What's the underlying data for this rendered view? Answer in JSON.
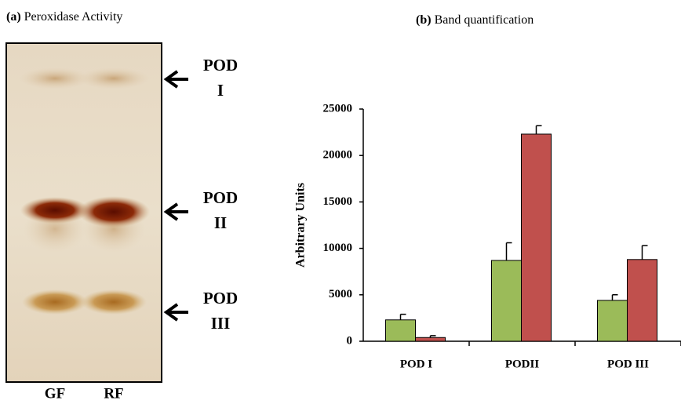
{
  "gel": {
    "panel_label": "(a)",
    "title": "Peroxidase Activity",
    "lanes": [
      "GF",
      "RF"
    ],
    "bands": [
      {
        "lines": [
          "POD",
          "I"
        ]
      },
      {
        "lines": [
          "POD",
          "II"
        ]
      },
      {
        "lines": [
          "POD",
          "III"
        ]
      }
    ]
  },
  "chart_data": {
    "type": "bar",
    "panel_label": "(b)",
    "title": "Band quantification",
    "y_label": "Arbitrary Units",
    "categories": [
      "POD I",
      "PODII",
      "POD III"
    ],
    "series": [
      {
        "color": "#9bbb59",
        "values": [
          2300,
          8700,
          4400
        ],
        "errors": [
          600,
          1900,
          600
        ]
      },
      {
        "color": "#c0504d",
        "values": [
          400,
          22300,
          8800
        ],
        "errors": [
          200,
          900,
          1500
        ]
      }
    ],
    "ylim": [
      0,
      25000
    ],
    "yticks": [
      0,
      5000,
      10000,
      15000,
      20000,
      25000
    ]
  }
}
